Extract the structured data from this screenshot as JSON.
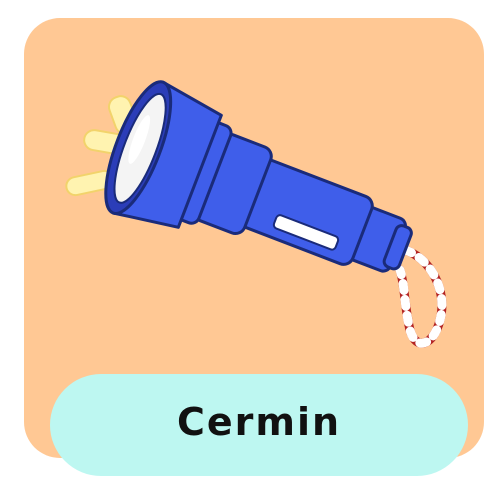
{
  "card": {
    "label": "Cermin",
    "background_color": "#FFC894",
    "label_background_color": "#BDF7F1"
  },
  "illustration": {
    "icon": "flashlight-icon",
    "body_color": "#3F5EEA",
    "strap_colors": [
      "#B22222",
      "#FFFFFF"
    ],
    "light_color": "#FFEB8A"
  }
}
